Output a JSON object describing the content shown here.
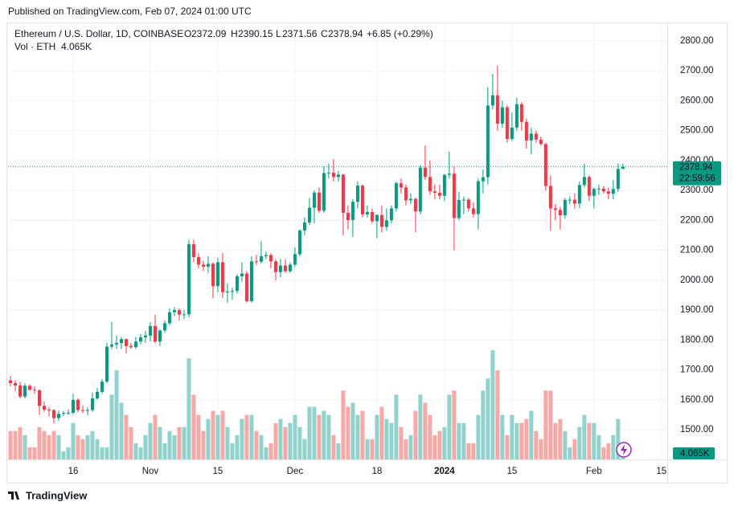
{
  "header": {
    "published": "Published on TradingView.com, Feb 07, 2024 01:00 UTC",
    "symbol": "Ethereum / U.S. Dollar, 1D, COINBASE",
    "o": "O",
    "h": "H",
    "l": "L",
    "c": "C",
    "change": "+6.85 (+0.29%)",
    "vol": "Vol · ETH",
    "countdown": "22:59:56"
  },
  "footer": "TradingView",
  "chart_data": {
    "type": "candlestick",
    "up_color": "#089981",
    "down_color": "#f23645",
    "volume_up_color": "#92d2cc",
    "volume_down_color": "#f7a9a7",
    "grid": true,
    "ylim": [
      1401,
      2856
    ],
    "yticks": [
      {
        "value": 1500,
        "label": "1500.00"
      },
      {
        "value": 1600,
        "label": "1600.00"
      },
      {
        "value": 1700,
        "label": "1700.00"
      },
      {
        "value": 1800,
        "label": "1800.00"
      },
      {
        "value": 1900,
        "label": "1900.00"
      },
      {
        "value": 2000,
        "label": "2000.00"
      },
      {
        "value": 2100,
        "label": "2100.00"
      },
      {
        "value": 2200,
        "label": "2200.00"
      },
      {
        "value": 2300,
        "label": "2300.00"
      },
      {
        "value": 2400,
        "label": "2400.00"
      },
      {
        "value": 2500,
        "label": "2500.00"
      },
      {
        "value": 2600,
        "label": "2600.00"
      },
      {
        "value": 2700,
        "label": "2700.00"
      },
      {
        "value": 2800,
        "label": "2800.00"
      }
    ],
    "xlim": [
      -0.5,
      136.2
    ],
    "xticks": [
      {
        "value": 13,
        "label": "16"
      },
      {
        "value": 29,
        "label": "Nov"
      },
      {
        "value": 43,
        "label": "15"
      },
      {
        "value": 59,
        "label": "Dec"
      },
      {
        "value": 76,
        "label": "18"
      },
      {
        "value": 90,
        "label": "2024"
      },
      {
        "value": 104,
        "label": "15"
      },
      {
        "value": 121,
        "label": "Feb"
      },
      {
        "value": 135,
        "label": "15"
      }
    ],
    "candles": [
      [
        1665,
        1680,
        1645,
        1656
      ],
      [
        1656,
        1665,
        1630,
        1648
      ],
      [
        1648,
        1660,
        1605,
        1611
      ],
      [
        1611,
        1655,
        1605,
        1647
      ],
      [
        1647,
        1652,
        1630,
        1634
      ],
      [
        1634,
        1645,
        1620,
        1632
      ],
      [
        1632,
        1635,
        1550,
        1580
      ],
      [
        1580,
        1595,
        1560,
        1567
      ],
      [
        1567,
        1575,
        1545,
        1566
      ],
      [
        1566,
        1568,
        1521,
        1539
      ],
      [
        1539,
        1565,
        1530,
        1553
      ],
      [
        1553,
        1563,
        1545,
        1556
      ],
      [
        1556,
        1568,
        1550,
        1557
      ],
      [
        1557,
        1620,
        1552,
        1600
      ],
      [
        1600,
        1605,
        1558,
        1566
      ],
      [
        1566,
        1580,
        1555,
        1565
      ],
      [
        1565,
        1575,
        1548,
        1566
      ],
      [
        1566,
        1625,
        1560,
        1605
      ],
      [
        1605,
        1640,
        1600,
        1627
      ],
      [
        1627,
        1670,
        1620,
        1661
      ],
      [
        1661,
        1790,
        1655,
        1778
      ],
      [
        1778,
        1860,
        1770,
        1785
      ],
      [
        1785,
        1815,
        1770,
        1790
      ],
      [
        1790,
        1810,
        1770,
        1803
      ],
      [
        1803,
        1805,
        1755,
        1780
      ],
      [
        1780,
        1790,
        1770,
        1776
      ],
      [
        1776,
        1810,
        1770,
        1795
      ],
      [
        1795,
        1820,
        1785,
        1809
      ],
      [
        1809,
        1830,
        1790,
        1815
      ],
      [
        1815,
        1860,
        1795,
        1847
      ],
      [
        1847,
        1885,
        1790,
        1795
      ],
      [
        1795,
        1835,
        1780,
        1832
      ],
      [
        1832,
        1865,
        1825,
        1856
      ],
      [
        1856,
        1905,
        1850,
        1893
      ],
      [
        1893,
        1910,
        1880,
        1900
      ],
      [
        1900,
        1905,
        1865,
        1885
      ],
      [
        1885,
        1900,
        1870,
        1886
      ],
      [
        1886,
        2135,
        1875,
        2120
      ],
      [
        2120,
        2135,
        2060,
        2077
      ],
      [
        2077,
        2090,
        2040,
        2052
      ],
      [
        2052,
        2065,
        2030,
        2045
      ],
      [
        2045,
        2080,
        2025,
        2055
      ],
      [
        2055,
        2060,
        1940,
        1980
      ],
      [
        1980,
        2075,
        1960,
        2060
      ],
      [
        2060,
        2090,
        1940,
        1960
      ],
      [
        1960,
        1990,
        1925,
        1962
      ],
      [
        1962,
        1975,
        1935,
        1964
      ],
      [
        1964,
        2020,
        1955,
        2013
      ],
      [
        2013,
        2060,
        1995,
        2022
      ],
      [
        2022,
        2030,
        1925,
        1930
      ],
      [
        1930,
        2080,
        1925,
        2063
      ],
      [
        2063,
        2085,
        2050,
        2062
      ],
      [
        2062,
        2130,
        2055,
        2080
      ],
      [
        2080,
        2095,
        2070,
        2084
      ],
      [
        2084,
        2090,
        2040,
        2063
      ],
      [
        2063,
        2070,
        2000,
        2027
      ],
      [
        2027,
        2070,
        2010,
        2049
      ],
      [
        2049,
        2070,
        2025,
        2030
      ],
      [
        2030,
        2060,
        2025,
        2052
      ],
      [
        2052,
        2110,
        2045,
        2087
      ],
      [
        2087,
        2170,
        2080,
        2166
      ],
      [
        2166,
        2210,
        2150,
        2193
      ],
      [
        2193,
        2275,
        2185,
        2242
      ],
      [
        2242,
        2300,
        2190,
        2293
      ],
      [
        2293,
        2310,
        2225,
        2232
      ],
      [
        2232,
        2380,
        2225,
        2358
      ],
      [
        2358,
        2390,
        2340,
        2359
      ],
      [
        2359,
        2405,
        2330,
        2345
      ],
      [
        2345,
        2365,
        2330,
        2353
      ],
      [
        2353,
        2355,
        2150,
        2225
      ],
      [
        2225,
        2250,
        2170,
        2201
      ],
      [
        2201,
        2270,
        2145,
        2262
      ],
      [
        2262,
        2330,
        2240,
        2316
      ],
      [
        2316,
        2320,
        2210,
        2220
      ],
      [
        2220,
        2250,
        2210,
        2228
      ],
      [
        2228,
        2240,
        2190,
        2197
      ],
      [
        2197,
        2220,
        2140,
        2218
      ],
      [
        2218,
        2250,
        2160,
        2178
      ],
      [
        2178,
        2240,
        2165,
        2200
      ],
      [
        2200,
        2250,
        2190,
        2240
      ],
      [
        2240,
        2330,
        2230,
        2324
      ],
      [
        2324,
        2340,
        2290,
        2310
      ],
      [
        2310,
        2320,
        2250,
        2267
      ],
      [
        2267,
        2290,
        2255,
        2272
      ],
      [
        2272,
        2275,
        2160,
        2230
      ],
      [
        2230,
        2385,
        2220,
        2376
      ],
      [
        2376,
        2450,
        2335,
        2345
      ],
      [
        2345,
        2400,
        2285,
        2297
      ],
      [
        2297,
        2320,
        2270,
        2292
      ],
      [
        2292,
        2320,
        2270,
        2282
      ],
      [
        2282,
        2355,
        2265,
        2352
      ],
      [
        2352,
        2430,
        2340,
        2356
      ],
      [
        2356,
        2380,
        2100,
        2208
      ],
      [
        2208,
        2295,
        2200,
        2268
      ],
      [
        2268,
        2280,
        2220,
        2269
      ],
      [
        2269,
        2275,
        2230,
        2240
      ],
      [
        2240,
        2260,
        2210,
        2221
      ],
      [
        2221,
        2340,
        2170,
        2331
      ],
      [
        2331,
        2370,
        2290,
        2344
      ],
      [
        2344,
        2645,
        2320,
        2584
      ],
      [
        2584,
        2690,
        2570,
        2618
      ],
      [
        2618,
        2717,
        2500,
        2523
      ],
      [
        2523,
        2600,
        2510,
        2578
      ],
      [
        2578,
        2585,
        2460,
        2472
      ],
      [
        2472,
        2560,
        2465,
        2510
      ],
      [
        2510,
        2610,
        2500,
        2588
      ],
      [
        2588,
        2595,
        2500,
        2529
      ],
      [
        2529,
        2540,
        2440,
        2467
      ],
      [
        2467,
        2510,
        2420,
        2490
      ],
      [
        2490,
        2500,
        2460,
        2470
      ],
      [
        2470,
        2480,
        2450,
        2455
      ],
      [
        2455,
        2460,
        2300,
        2315
      ],
      [
        2315,
        2350,
        2165,
        2240
      ],
      [
        2240,
        2255,
        2200,
        2235
      ],
      [
        2235,
        2245,
        2170,
        2217
      ],
      [
        2217,
        2275,
        2205,
        2268
      ],
      [
        2268,
        2280,
        2255,
        2269
      ],
      [
        2269,
        2290,
        2240,
        2256
      ],
      [
        2256,
        2330,
        2240,
        2318
      ],
      [
        2318,
        2390,
        2310,
        2345
      ],
      [
        2345,
        2350,
        2265,
        2282
      ],
      [
        2282,
        2310,
        2240,
        2305
      ],
      [
        2305,
        2320,
        2285,
        2306
      ],
      [
        2306,
        2315,
        2290,
        2297
      ],
      [
        2297,
        2310,
        2270,
        2289
      ],
      [
        2289,
        2335,
        2270,
        2305
      ],
      [
        2305,
        2390,
        2295,
        2372.09
      ],
      [
        2372.09,
        2390.15,
        2371.56,
        2378.94
      ]
    ],
    "volume": [
      7,
      7,
      8,
      6,
      3,
      3,
      8,
      7,
      6,
      7,
      6,
      2,
      3,
      9,
      6,
      5,
      6,
      7,
      5,
      3,
      3,
      16,
      22,
      14,
      11,
      8,
      4,
      3,
      6,
      9,
      11,
      8,
      4,
      7,
      6,
      8,
      8,
      25,
      16,
      11,
      7,
      10,
      12,
      11,
      12,
      8,
      4,
      6,
      10,
      11,
      11,
      7,
      6,
      3,
      4,
      9,
      10,
      8,
      9,
      11,
      8,
      5,
      13,
      13,
      11,
      12,
      11,
      6,
      4,
      17,
      13,
      14,
      11,
      12,
      5,
      5,
      11,
      13,
      10,
      9,
      16,
      8,
      5,
      6,
      12,
      16,
      14,
      11,
      6,
      7,
      8,
      16,
      17,
      9,
      9,
      4,
      4,
      11,
      17,
      20,
      27,
      22,
      11,
      6,
      11,
      9,
      9,
      10,
      12,
      7,
      5,
      17,
      17,
      9,
      10,
      7,
      3,
      5,
      8,
      11,
      9,
      9,
      6,
      3,
      4,
      6,
      10,
      4.065
    ],
    "volume_label": "4.065K"
  }
}
